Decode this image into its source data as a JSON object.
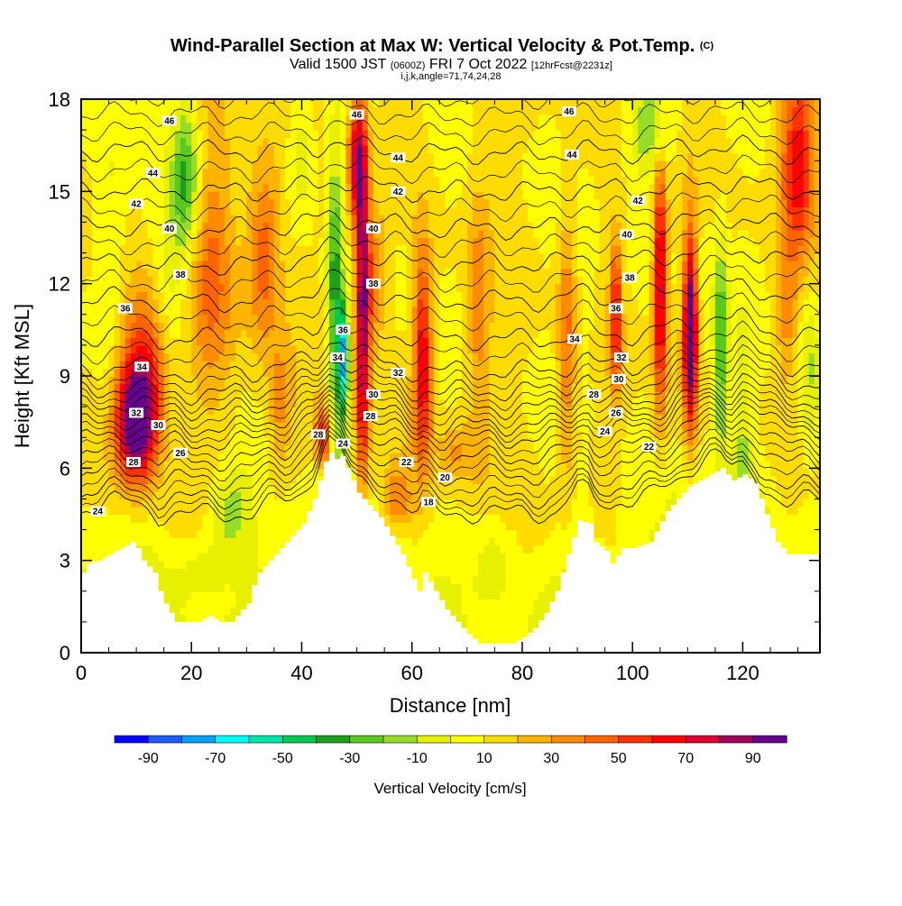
{
  "title": {
    "main": "Wind-Parallel Section at Max W: Vertical Velocity & Pot.Temp.",
    "copyright": "(C)",
    "valid_prefix": "Valid 1500 JST",
    "valid_utc": "(0600Z)",
    "valid_date": "FRI 7 Oct 2022",
    "forecast": "[12hrFcst@2231z]",
    "indices": "i,j,k,angle=71,74,24,28"
  },
  "chart_data": {
    "type": "heatmap",
    "xlabel": "Distance [nm]",
    "ylabel": "Height [Kft MSL]",
    "xlim": [
      0,
      134
    ],
    "ylim": [
      0,
      18
    ],
    "x_ticks": [
      "0",
      "20",
      "40",
      "60",
      "80",
      "100",
      "120"
    ],
    "y_ticks": [
      "0",
      "3",
      "6",
      "9",
      "12",
      "15",
      "18"
    ],
    "colorbar": {
      "label": "Vertical Velocity [cm/s]",
      "min": -100,
      "max": 100,
      "step": 10,
      "tick_labels": [
        "-90",
        "-70",
        "-50",
        "-30",
        "-10",
        "10",
        "30",
        "50",
        "70",
        "90"
      ],
      "colors": [
        "#0000ff",
        "#1e5aff",
        "#00a0ff",
        "#00ffff",
        "#00e6aa",
        "#00c850",
        "#1ea01e",
        "#5ac81e",
        "#96dc28",
        "#e6f000",
        "#ffff00",
        "#ffdc00",
        "#ffb400",
        "#ff8c00",
        "#ff6400",
        "#ff3200",
        "#ff0000",
        "#dc0032",
        "#a0005a",
        "#64008c"
      ]
    },
    "terrain_kft": [
      [
        0,
        2.6
      ],
      [
        1,
        2.9
      ],
      [
        3,
        3.0
      ],
      [
        5,
        3.2
      ],
      [
        7,
        3.4
      ],
      [
        9,
        3.6
      ],
      [
        10,
        3.4
      ],
      [
        11,
        3.0
      ],
      [
        13,
        2.6
      ],
      [
        14,
        2.0
      ],
      [
        15,
        1.6
      ],
      [
        16,
        1.3
      ],
      [
        17,
        1.0
      ],
      [
        21,
        1.0
      ],
      [
        23,
        1.2
      ],
      [
        25,
        1.0
      ],
      [
        27,
        1.0
      ],
      [
        29,
        1.4
      ],
      [
        30,
        1.6
      ],
      [
        31,
        2.2
      ],
      [
        32,
        2.6
      ],
      [
        34,
        3.0
      ],
      [
        36,
        3.4
      ],
      [
        38,
        3.8
      ],
      [
        40,
        4.2
      ],
      [
        42,
        5.0
      ],
      [
        43,
        5.6
      ],
      [
        44,
        6.2
      ],
      [
        45,
        6.5
      ],
      [
        46,
        6.3
      ],
      [
        47,
        6.4
      ],
      [
        48,
        6.0
      ],
      [
        49,
        5.6
      ],
      [
        50,
        5.2
      ],
      [
        52,
        4.8
      ],
      [
        54,
        4.4
      ],
      [
        56,
        3.8
      ],
      [
        58,
        3.2
      ],
      [
        60,
        2.4
      ],
      [
        61,
        2.0
      ],
      [
        62,
        2.6
      ],
      [
        64,
        2.0
      ],
      [
        66,
        1.4
      ],
      [
        68,
        1.0
      ],
      [
        70,
        0.6
      ],
      [
        72,
        0.3
      ],
      [
        76,
        0.3
      ],
      [
        78,
        0.3
      ],
      [
        80,
        0.5
      ],
      [
        82,
        0.8
      ],
      [
        84,
        1.3
      ],
      [
        86,
        2.0
      ],
      [
        88,
        3.2
      ],
      [
        90,
        4.3
      ],
      [
        92,
        4.2
      ],
      [
        93,
        3.6
      ],
      [
        95,
        3.3
      ],
      [
        96,
        2.9
      ],
      [
        98,
        3.4
      ],
      [
        100,
        3.4
      ],
      [
        103,
        3.6
      ],
      [
        106,
        4.6
      ],
      [
        108,
        5.0
      ],
      [
        110,
        5.4
      ],
      [
        112,
        5.6
      ],
      [
        114,
        5.8
      ],
      [
        116,
        6.0
      ],
      [
        118,
        5.6
      ],
      [
        120,
        5.8
      ],
      [
        122,
        5.5
      ],
      [
        124,
        4.5
      ],
      [
        126,
        3.6
      ],
      [
        128,
        3.2
      ],
      [
        130,
        3.2
      ],
      [
        134,
        3.2
      ]
    ],
    "velocity_features": [
      {
        "x": 10,
        "y": 7.5,
        "sx": 3.5,
        "sy": 1.8,
        "w": 95
      },
      {
        "x": 12,
        "y": 9.5,
        "sx": 5,
        "sy": 2.5,
        "w": 45
      },
      {
        "x": 16,
        "y": 11.5,
        "sx": 3,
        "sy": 3,
        "w": -22
      },
      {
        "x": 19,
        "y": 15.5,
        "sx": 2.5,
        "sy": 2.5,
        "w": -45
      },
      {
        "x": 5,
        "y": 13,
        "sx": 3,
        "sy": 6,
        "w": -18
      },
      {
        "x": 27,
        "y": 4.5,
        "sx": 4,
        "sy": 1.5,
        "w": -30
      },
      {
        "x": 22,
        "y": 2.8,
        "sx": 5,
        "sy": 1,
        "w": -15
      },
      {
        "x": 33,
        "y": 13,
        "sx": 3,
        "sy": 3,
        "w": 38
      },
      {
        "x": 24,
        "y": 12.5,
        "sx": 4,
        "sy": 4,
        "w": 28
      },
      {
        "x": 46,
        "y": 12,
        "sx": 1.3,
        "sy": 5,
        "w": -45
      },
      {
        "x": 47.5,
        "y": 9.5,
        "sx": 1,
        "sy": 1.8,
        "w": -80
      },
      {
        "x": 44,
        "y": 7,
        "sx": 1.5,
        "sy": 1,
        "w": 55
      },
      {
        "x": 51,
        "y": 11,
        "sx": 1.3,
        "sy": 6,
        "w": 80
      },
      {
        "x": 50,
        "y": 16,
        "sx": 1.5,
        "sy": 2,
        "w": 60
      },
      {
        "x": 62,
        "y": 9.5,
        "sx": 1.6,
        "sy": 3.5,
        "w": 58
      },
      {
        "x": 53,
        "y": 12,
        "sx": 2,
        "sy": 2,
        "w": 30
      },
      {
        "x": 40,
        "y": 16,
        "sx": 2.5,
        "sy": 2,
        "w": -25
      },
      {
        "x": 58,
        "y": 13,
        "sx": 2,
        "sy": 3,
        "w": -8
      },
      {
        "x": 75,
        "y": 3,
        "sx": 4,
        "sy": 1.5,
        "w": -18
      },
      {
        "x": 72,
        "y": 11,
        "sx": 2,
        "sy": 4,
        "w": 25
      },
      {
        "x": 88,
        "y": 10,
        "sx": 1.5,
        "sy": 4,
        "w": 32
      },
      {
        "x": 92,
        "y": 12,
        "sx": 2,
        "sy": 4,
        "w": -10
      },
      {
        "x": 97,
        "y": 11,
        "sx": 1,
        "sy": 2.5,
        "w": 55
      },
      {
        "x": 105,
        "y": 12,
        "sx": 1.2,
        "sy": 4,
        "w": 75
      },
      {
        "x": 103,
        "y": 17,
        "sx": 4,
        "sy": 1.5,
        "w": -30
      },
      {
        "x": 110.5,
        "y": 10.5,
        "sx": 1.2,
        "sy": 3,
        "w": 100
      },
      {
        "x": 113,
        "y": 12,
        "sx": 1.5,
        "sy": 4,
        "w": -10
      },
      {
        "x": 116,
        "y": 10,
        "sx": 1.3,
        "sy": 3.5,
        "w": -45
      },
      {
        "x": 120,
        "y": 8,
        "sx": 1.5,
        "sy": 3,
        "w": -20
      },
      {
        "x": 130,
        "y": 16,
        "sx": 3,
        "sy": 3,
        "w": 55
      },
      {
        "x": 132,
        "y": 9,
        "sx": 2,
        "sy": 3,
        "w": -25
      },
      {
        "x": 128,
        "y": 11,
        "sx": 2,
        "sy": 2,
        "w": 22
      },
      {
        "x": 36,
        "y": 8,
        "sx": 2,
        "sy": 2,
        "w": 22
      },
      {
        "x": 57,
        "y": 5,
        "sx": 3,
        "sy": 1,
        "w": 30
      },
      {
        "x": 68,
        "y": 6.5,
        "sx": 3,
        "sy": 1,
        "w": 20
      }
    ],
    "theta_levels": [
      {
        "value": "18",
        "left": 4.5,
        "right": 4.6,
        "label_x": 63
      },
      {
        "value": "20",
        "left": 5.0,
        "right": 5.1,
        "label_x": 66
      },
      {
        "value": "22",
        "left": 5.6,
        "right": 5.9,
        "label_x": 60
      },
      {
        "value": "24",
        "left": 6.2,
        "right": 6.5,
        "label_x": 3
      },
      {
        "value": "26",
        "left": 6.8,
        "right": 7.1,
        "label_x": 18
      },
      {
        "value": "28",
        "left": 7.3,
        "right": 7.5,
        "label_x": 9
      },
      {
        "value": "30",
        "left": 7.9,
        "right": 8.0,
        "label_x": 14
      },
      {
        "value": "32",
        "left": 8.4,
        "right": 8.6,
        "label_x": 10
      },
      {
        "value": "34",
        "left": 9.1,
        "right": 9.2,
        "label_x": 11
      },
      {
        "value": "36",
        "left": 10.2,
        "right": 10.2,
        "label_x": 8
      },
      {
        "value": "38",
        "left": 11.4,
        "right": 11.5,
        "label_x": 18
      },
      {
        "value": "40",
        "left": 12.6,
        "right": 12.7,
        "label_x": 16
      },
      {
        "value": "42",
        "left": 13.8,
        "right": 13.8,
        "label_x": 10
      },
      {
        "value": "44",
        "left": 15.0,
        "right": 15.0,
        "label_x": 13
      },
      {
        "value": "46",
        "left": 16.3,
        "right": 16.2,
        "label_x": 16
      }
    ],
    "contour_labels": [
      {
        "text": "46",
        "x": 16,
        "y": 17.3
      },
      {
        "text": "44",
        "x": 13,
        "y": 15.6
      },
      {
        "text": "42",
        "x": 10,
        "y": 14.6
      },
      {
        "text": "40",
        "x": 16,
        "y": 13.8
      },
      {
        "text": "38",
        "x": 18,
        "y": 12.3
      },
      {
        "text": "36",
        "x": 8,
        "y": 11.2
      },
      {
        "text": "34",
        "x": 11,
        "y": 9.3
      },
      {
        "text": "32",
        "x": 10,
        "y": 7.8
      },
      {
        "text": "30",
        "x": 14,
        "y": 7.4
      },
      {
        "text": "28",
        "x": 9.5,
        "y": 6.2
      },
      {
        "text": "26",
        "x": 18,
        "y": 6.5
      },
      {
        "text": "24",
        "x": 3,
        "y": 4.6
      },
      {
        "text": "46",
        "x": 50,
        "y": 17.5
      },
      {
        "text": "44",
        "x": 57.5,
        "y": 16.1
      },
      {
        "text": "42",
        "x": 57.5,
        "y": 15.0
      },
      {
        "text": "40",
        "x": 53,
        "y": 13.8
      },
      {
        "text": "38",
        "x": 53,
        "y": 12.0
      },
      {
        "text": "36",
        "x": 47.5,
        "y": 10.5
      },
      {
        "text": "34",
        "x": 46.5,
        "y": 9.6
      },
      {
        "text": "32",
        "x": 57.5,
        "y": 9.1
      },
      {
        "text": "30",
        "x": 53,
        "y": 8.4
      },
      {
        "text": "28",
        "x": 52.5,
        "y": 7.7
      },
      {
        "text": "28",
        "x": 43,
        "y": 7.1
      },
      {
        "text": "24",
        "x": 47.5,
        "y": 6.8
      },
      {
        "text": "22",
        "x": 59,
        "y": 6.2
      },
      {
        "text": "20",
        "x": 66,
        "y": 5.7
      },
      {
        "text": "18",
        "x": 63,
        "y": 4.9
      },
      {
        "text": "46",
        "x": 88.5,
        "y": 17.6
      },
      {
        "text": "44",
        "x": 89,
        "y": 16.2
      },
      {
        "text": "42",
        "x": 101,
        "y": 14.7
      },
      {
        "text": "40",
        "x": 99,
        "y": 13.6
      },
      {
        "text": "38",
        "x": 99.5,
        "y": 12.2
      },
      {
        "text": "36",
        "x": 97,
        "y": 11.2
      },
      {
        "text": "34",
        "x": 89.5,
        "y": 10.2
      },
      {
        "text": "32",
        "x": 98,
        "y": 9.6
      },
      {
        "text": "30",
        "x": 97.5,
        "y": 8.9
      },
      {
        "text": "28",
        "x": 93,
        "y": 8.4
      },
      {
        "text": "26",
        "x": 97,
        "y": 7.8
      },
      {
        "text": "24",
        "x": 95,
        "y": 7.2
      },
      {
        "text": "22",
        "x": 103,
        "y": 6.7
      }
    ]
  }
}
